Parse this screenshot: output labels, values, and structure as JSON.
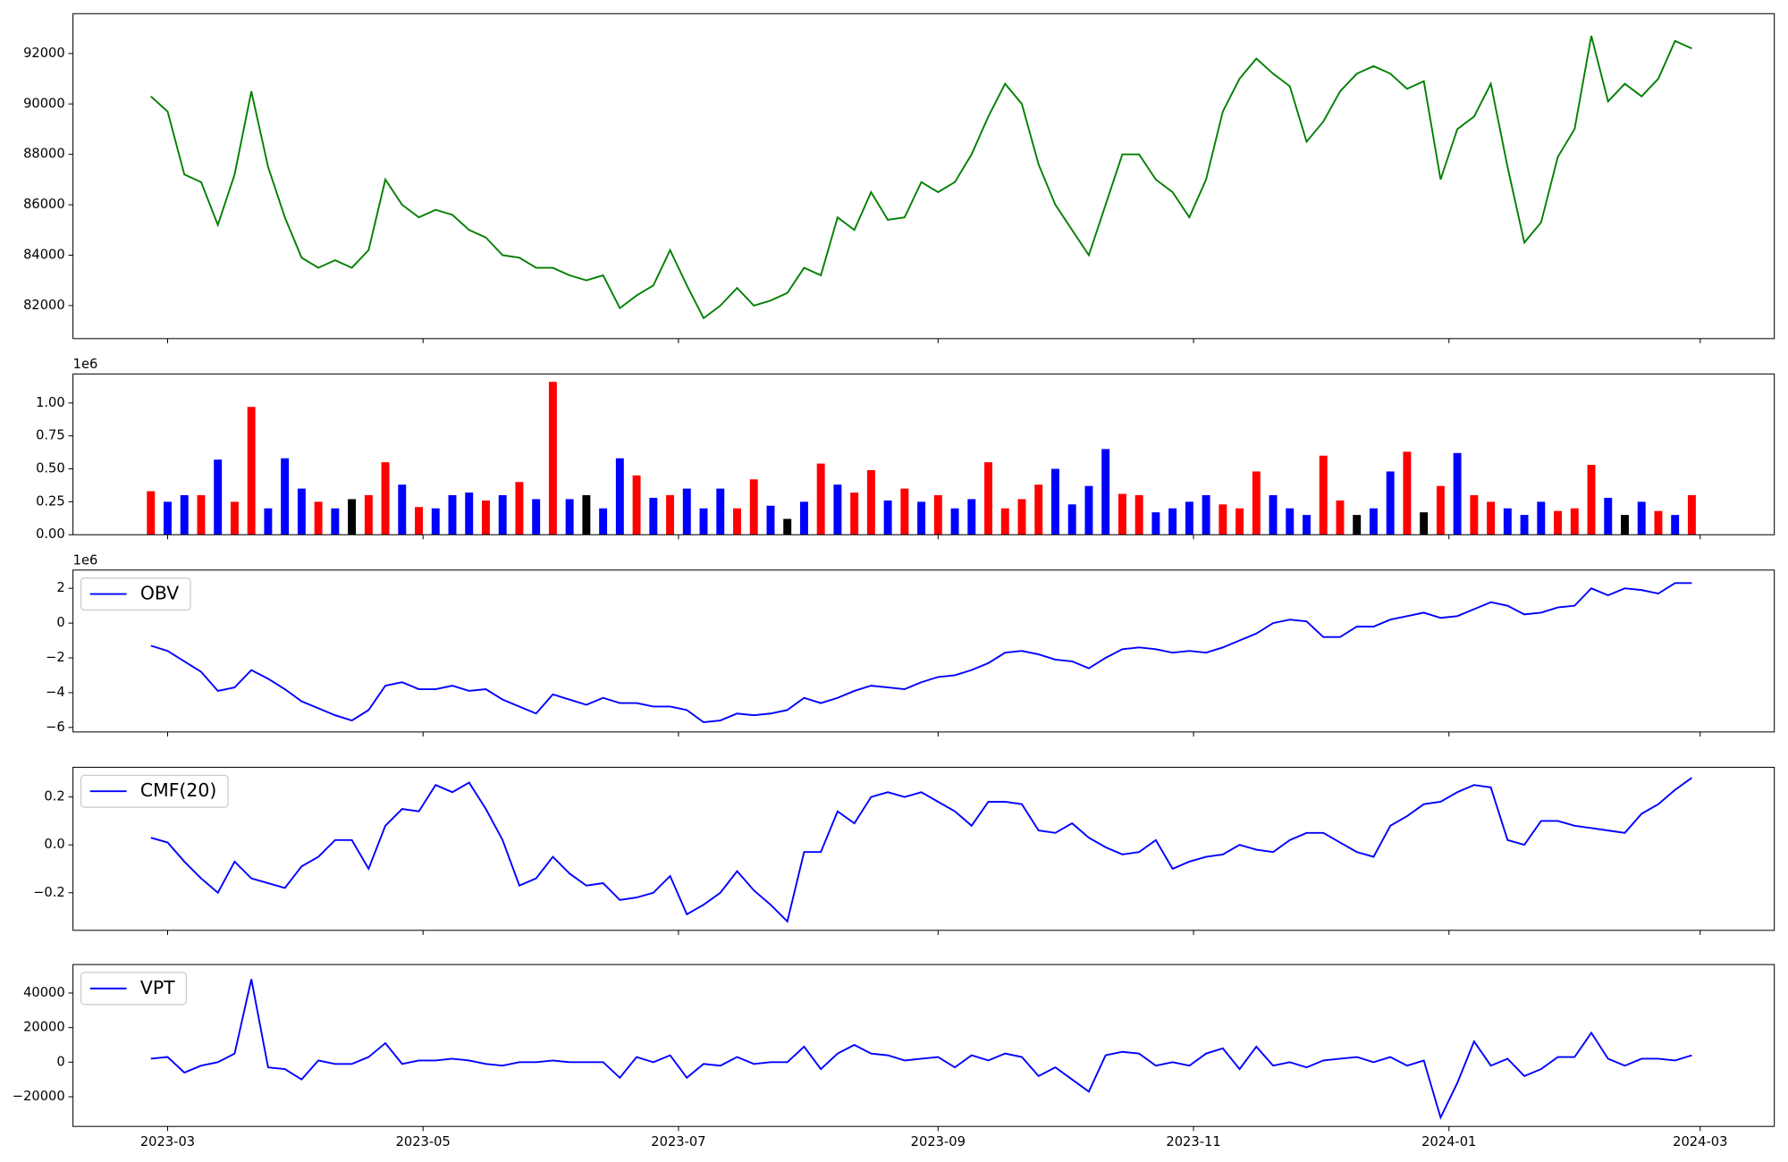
{
  "chart_data": [
    {
      "type": "line",
      "x": [
        55,
        59,
        63,
        67,
        71,
        75,
        79,
        83,
        87,
        91,
        95,
        99,
        103,
        107,
        111,
        115,
        119,
        123,
        127,
        131,
        135,
        139,
        143,
        147,
        151,
        155,
        159,
        163,
        167,
        171,
        175,
        179,
        183,
        187,
        191,
        195,
        199,
        203,
        207,
        211,
        215,
        219,
        223,
        227,
        231,
        235,
        239,
        243,
        247,
        251,
        255,
        259,
        263,
        267,
        271,
        275,
        279,
        283,
        287,
        291,
        295,
        299,
        303,
        307,
        311,
        315,
        319,
        323,
        327,
        331,
        335,
        339,
        343,
        347,
        351,
        355,
        359,
        363,
        367,
        371,
        375,
        379,
        383,
        387,
        391,
        395,
        399,
        403,
        407,
        411,
        415,
        419,
        423
      ],
      "series": [
        {
          "color": "#008000",
          "values": [
            90300,
            89700,
            87200,
            86900,
            85200,
            87200,
            90500,
            87500,
            85500,
            83900,
            83500,
            83800,
            83500,
            84200,
            87000,
            86000,
            85500,
            85800,
            85600,
            85000,
            84700,
            84000,
            83900,
            83500,
            83500,
            83200,
            83000,
            83200,
            81900,
            82400,
            82800,
            84200,
            82800,
            81500,
            82000,
            82700,
            82000,
            82200,
            82500,
            83500,
            83200,
            85500,
            85000,
            86500,
            85400,
            85500,
            86900,
            86500,
            86900,
            88000,
            89500,
            90800,
            90000,
            87600,
            86000,
            85000,
            84000,
            86000,
            88000,
            88000,
            87000,
            86500,
            85500,
            87000,
            89700,
            91000,
            91800,
            91200,
            90700,
            88500,
            89300,
            90500,
            91200,
            91500,
            91200,
            90600,
            90900,
            87000,
            89000,
            89500,
            90800,
            87500,
            84500,
            85300,
            87900,
            89000,
            92700,
            90100,
            90800,
            90300,
            91000,
            92500,
            92200
          ]
        }
      ],
      "ylim": [
        80690,
        93580
      ],
      "yticks": [
        82000,
        84000,
        86000,
        88000,
        90000,
        92000
      ]
    },
    {
      "type": "bar",
      "offset_label": "1e6",
      "values": [
        0.33,
        0.25,
        0.3,
        0.3,
        0.57,
        0.25,
        0.97,
        0.2,
        0.58,
        0.35,
        0.25,
        0.2,
        0.27,
        0.3,
        0.55,
        0.38,
        0.21,
        0.2,
        0.3,
        0.32,
        0.26,
        0.3,
        0.4,
        0.27,
        1.16,
        0.27,
        0.3,
        0.2,
        0.58,
        0.45,
        0.28,
        0.3,
        0.35,
        0.2,
        0.35,
        0.2,
        0.42,
        0.22,
        0.12,
        0.25,
        0.54,
        0.38,
        0.32,
        0.49,
        0.26,
        0.35,
        0.25,
        0.3,
        0.2,
        0.27,
        0.55,
        0.2,
        0.27,
        0.38,
        0.5,
        0.23,
        0.37,
        0.65,
        0.31,
        0.3,
        0.17,
        0.2,
        0.25,
        0.3,
        0.23,
        0.2,
        0.48,
        0.3,
        0.2,
        0.15,
        0.6,
        0.26,
        0.15,
        0.2,
        0.48,
        0.63,
        0.17,
        0.37,
        0.62,
        0.3,
        0.25,
        0.2,
        0.15,
        0.25,
        0.18,
        0.2,
        0.53,
        0.28,
        0.15,
        0.25,
        0.18,
        0.15,
        0.3
      ],
      "colors": [
        "#ff0000",
        "#0000ff",
        "#0000ff",
        "#ff0000",
        "#0000ff",
        "#ff0000",
        "#ff0000",
        "#0000ff",
        "#0000ff",
        "#0000ff",
        "#ff0000",
        "#0000ff",
        "#000000",
        "#ff0000",
        "#ff0000",
        "#0000ff",
        "#ff0000",
        "#0000ff",
        "#0000ff",
        "#0000ff",
        "#ff0000",
        "#0000ff",
        "#ff0000",
        "#0000ff",
        "#ff0000",
        "#0000ff",
        "#000000",
        "#0000ff",
        "#0000ff",
        "#ff0000",
        "#0000ff",
        "#ff0000",
        "#0000ff",
        "#0000ff",
        "#0000ff",
        "#ff0000",
        "#ff0000",
        "#0000ff",
        "#000000",
        "#0000ff",
        "#ff0000",
        "#0000ff",
        "#ff0000",
        "#ff0000",
        "#0000ff",
        "#ff0000",
        "#0000ff",
        "#ff0000",
        "#0000ff",
        "#0000ff",
        "#ff0000",
        "#ff0000",
        "#ff0000",
        "#ff0000",
        "#0000ff",
        "#0000ff",
        "#0000ff",
        "#0000ff",
        "#ff0000",
        "#ff0000",
        "#0000ff",
        "#0000ff",
        "#0000ff",
        "#0000ff",
        "#ff0000",
        "#ff0000",
        "#ff0000",
        "#0000ff",
        "#0000ff",
        "#0000ff",
        "#ff0000",
        "#ff0000",
        "#000000",
        "#0000ff",
        "#0000ff",
        "#ff0000",
        "#000000",
        "#ff0000",
        "#0000ff",
        "#ff0000",
        "#ff0000",
        "#0000ff",
        "#0000ff",
        "#0000ff",
        "#ff0000",
        "#ff0000",
        "#ff0000",
        "#0000ff",
        "#000000",
        "#0000ff",
        "#ff0000",
        "#0000ff",
        "#ff0000"
      ],
      "ylim": [
        0,
        1.22
      ],
      "yticks": [
        {
          "value": 0,
          "label": "0.00"
        },
        {
          "value": 0.25,
          "label": "0.25"
        },
        {
          "value": 0.5,
          "label": "0.50"
        },
        {
          "value": 0.75,
          "label": "0.75"
        },
        {
          "value": 1,
          "label": "1.00"
        }
      ]
    },
    {
      "type": "line",
      "offset_label": "1e6",
      "legend": "upper left",
      "series": [
        {
          "name": "OBV",
          "color": "#0000ff",
          "values": [
            -1.3,
            -1.6,
            -2.2,
            -2.8,
            -3.9,
            -3.7,
            -2.7,
            -3.2,
            -3.8,
            -4.5,
            -4.9,
            -5.3,
            -5.6,
            -5.0,
            -3.6,
            -3.4,
            -3.8,
            -3.8,
            -3.6,
            -3.9,
            -3.8,
            -4.4,
            -4.8,
            -5.2,
            -4.1,
            -4.4,
            -4.7,
            -4.3,
            -4.6,
            -4.6,
            -4.8,
            -4.8,
            -5.0,
            -5.7,
            -5.6,
            -5.2,
            -5.3,
            -5.2,
            -5.0,
            -4.3,
            -4.6,
            -4.3,
            -3.9,
            -3.6,
            -3.7,
            -3.8,
            -3.4,
            -3.1,
            -3.0,
            -2.7,
            -2.3,
            -1.7,
            -1.6,
            -1.8,
            -2.1,
            -2.2,
            -2.6,
            -2.0,
            -1.5,
            -1.4,
            -1.5,
            -1.7,
            -1.6,
            -1.7,
            -1.4,
            -1.0,
            -0.6,
            0.0,
            0.2,
            0.1,
            -0.8,
            -0.8,
            -0.2,
            -0.2,
            0.2,
            0.4,
            0.6,
            0.3,
            0.4,
            0.8,
            1.2,
            1.0,
            0.5,
            0.6,
            0.9,
            1.0,
            2.0,
            1.6,
            2.0,
            1.9,
            1.7,
            2.3,
            2.3
          ]
        }
      ],
      "ylim": [
        -6.26,
        3.05
      ],
      "yticks": [
        {
          "value": -6,
          "label": "−6"
        },
        {
          "value": -4,
          "label": "−4"
        },
        {
          "value": -2,
          "label": "−2"
        },
        0,
        2
      ]
    },
    {
      "type": "line",
      "legend": "upper left",
      "series": [
        {
          "name": "CMF(20)",
          "color": "#0000ff",
          "values": [
            0.03,
            0.01,
            -0.07,
            -0.14,
            -0.2,
            -0.07,
            -0.14,
            -0.16,
            -0.18,
            -0.09,
            -0.05,
            0.02,
            0.02,
            -0.1,
            0.08,
            0.15,
            0.14,
            0.25,
            0.22,
            0.26,
            0.15,
            0.02,
            -0.17,
            -0.14,
            -0.05,
            -0.12,
            -0.17,
            -0.16,
            -0.23,
            -0.22,
            -0.2,
            -0.13,
            -0.29,
            -0.25,
            -0.2,
            -0.11,
            -0.19,
            -0.25,
            -0.32,
            -0.03,
            -0.03,
            0.14,
            0.09,
            0.2,
            0.22,
            0.2,
            0.22,
            0.18,
            0.14,
            0.08,
            0.18,
            0.18,
            0.17,
            0.06,
            0.05,
            0.09,
            0.03,
            -0.01,
            -0.04,
            -0.03,
            0.02,
            -0.1,
            -0.07,
            -0.05,
            -0.04,
            0.0,
            -0.02,
            -0.03,
            0.02,
            0.05,
            0.05,
            0.01,
            -0.03,
            -0.05,
            0.08,
            0.12,
            0.17,
            0.18,
            0.22,
            0.25,
            0.24,
            0.02,
            0.0,
            0.1,
            0.1,
            0.08,
            0.07,
            0.06,
            0.05,
            0.13,
            0.17,
            0.23,
            0.28
          ]
        }
      ],
      "ylim": [
        -0.357,
        0.324
      ],
      "yticks": [
        {
          "value": -0.2,
          "label": "−0.2"
        },
        {
          "value": 0,
          "label": "0.0"
        },
        {
          "value": 0.2,
          "label": "0.2"
        }
      ]
    },
    {
      "type": "line",
      "legend": "upper left",
      "series": [
        {
          "name": "VPT",
          "color": "#0000ff",
          "values": [
            2000,
            3000,
            -6000,
            -2000,
            0,
            5000,
            48000,
            -3000,
            -4000,
            -10000,
            1000,
            -1000,
            -1000,
            3000,
            11000,
            -1000,
            1000,
            1000,
            2000,
            1000,
            -1000,
            -2000,
            0,
            0,
            1000,
            0,
            0,
            0,
            -9000,
            3000,
            0,
            4000,
            -9000,
            -1000,
            -2000,
            3000,
            -1000,
            0,
            0,
            9000,
            -4000,
            5000,
            10000,
            5000,
            4000,
            1000,
            2000,
            3000,
            -3000,
            4000,
            1000,
            5000,
            3000,
            -8000,
            -3000,
            -10000,
            -17000,
            4000,
            6000,
            5000,
            -2000,
            0,
            -2000,
            5000,
            8000,
            -4000,
            9000,
            -2000,
            0,
            -3000,
            1000,
            2000,
            3000,
            0,
            3000,
            -2000,
            1000,
            -32000,
            -12000,
            12000,
            -2000,
            2000,
            -8000,
            -4000,
            3000,
            3000,
            17000,
            2000,
            -2000,
            2000,
            2000,
            1000,
            4000
          ]
        }
      ],
      "ylim": [
        -37140,
        56480
      ],
      "yticks": [
        {
          "value": -20000,
          "label": "−20000"
        },
        0,
        20000,
        40000
      ],
      "xlim": [
        36.4,
        442.7
      ],
      "xticks": [
        {
          "value": 59,
          "label": "2023-03"
        },
        {
          "value": 120,
          "label": "2023-05"
        },
        {
          "value": 181,
          "label": "2023-07"
        },
        {
          "value": 243,
          "label": "2023-09"
        },
        {
          "value": 304,
          "label": "2023-11"
        },
        {
          "value": 365,
          "label": "2024-01"
        },
        {
          "value": 425,
          "label": "2024-03"
        }
      ]
    }
  ]
}
